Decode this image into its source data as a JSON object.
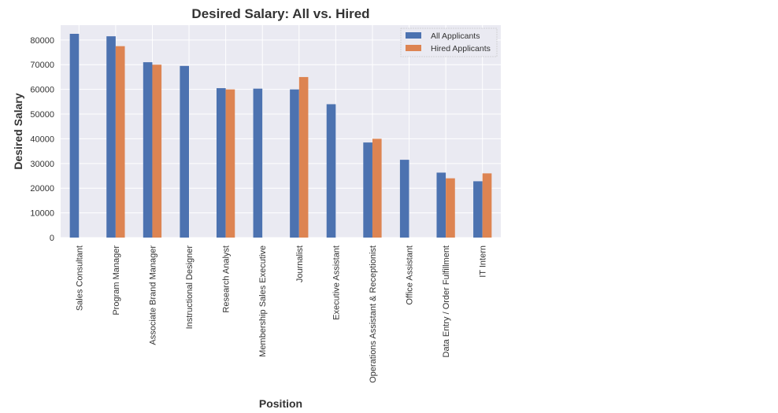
{
  "chart_data": {
    "type": "bar",
    "title": "Desired Salary: All vs. Hired",
    "xlabel": "Position",
    "ylabel": "Desired Salary",
    "ylim": [
      0,
      86000
    ],
    "yticks": [
      0,
      10000,
      20000,
      30000,
      40000,
      50000,
      60000,
      70000,
      80000
    ],
    "grid": true,
    "legend_position": "top-right",
    "categories": [
      "Sales Consultant",
      "Program Manager",
      "Associate Brand Manager",
      "Instructional Designer",
      "Research Analyst",
      "Membership Sales Executive",
      "Journalist",
      "Executive Assistant",
      "Operations Assistant & Receptionist",
      "Office Assistant",
      "Data Entry / Order Fulfillment",
      "IT Intern"
    ],
    "series": [
      {
        "name": "All Applicants",
        "color": "#4c72b0",
        "values": [
          82500,
          81500,
          71000,
          69500,
          60500,
          60300,
          60000,
          54000,
          38500,
          31500,
          26300,
          22800
        ]
      },
      {
        "name": "Hired Applicants",
        "color": "#dd8452",
        "values": [
          null,
          77500,
          70000,
          null,
          60000,
          null,
          65000,
          null,
          40000,
          null,
          24000,
          26000
        ]
      }
    ],
    "colors": {
      "plot_background": "#eaeaf2",
      "grid": "#ffffff"
    }
  }
}
